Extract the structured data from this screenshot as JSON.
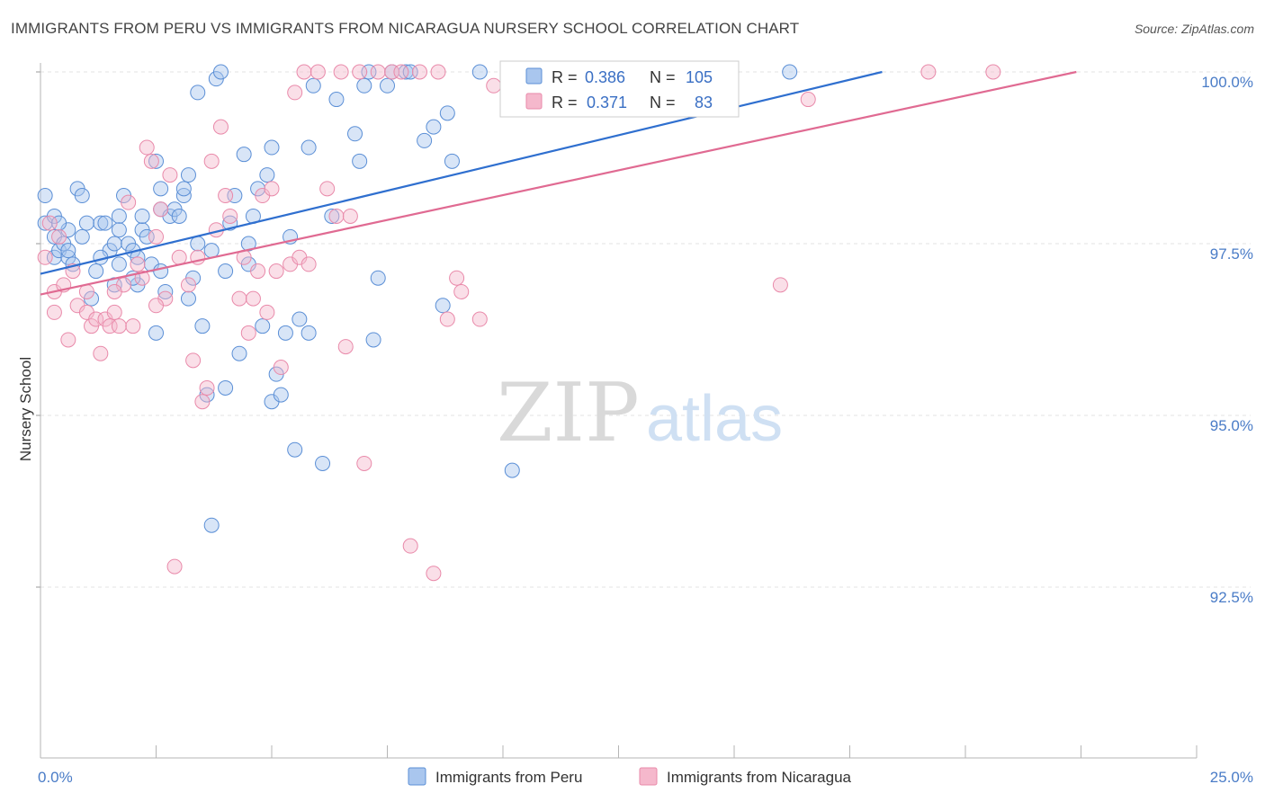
{
  "title": "IMMIGRANTS FROM PERU VS IMMIGRANTS FROM NICARAGUA NURSERY SCHOOL CORRELATION CHART",
  "source": "Source: ZipAtlas.com",
  "watermark": {
    "zip": "ZIP",
    "atlas": "atlas"
  },
  "colors": {
    "peru_fill": "#a9c6ee",
    "peru_stroke": "#5b8fd6",
    "peru_line": "#2f6fcf",
    "nicaragua_fill": "#f5b8cc",
    "nicaragua_stroke": "#e98aaa",
    "nicaragua_line": "#e06a92",
    "grid": "#e3e3e3",
    "axis_text": "#4a7cc7"
  },
  "legend_box": {
    "rows": [
      {
        "r_label": "R =",
        "r_value": "0.386",
        "n_label": "N =",
        "n_value": "105"
      },
      {
        "r_label": "R =",
        "r_value": "0.371",
        "n_label": "N =",
        "n_value": "83"
      }
    ]
  },
  "chart_data": {
    "type": "scatter",
    "title": "IMMIGRANTS FROM PERU VS IMMIGRANTS FROM NICARAGUA NURSERY SCHOOL CORRELATION CHART",
    "xlabel": "",
    "ylabel": "Nursery School",
    "xlim": [
      0,
      25
    ],
    "ylim": [
      90.0,
      100.3
    ],
    "x_tick_labels": [
      "0.0%",
      "25.0%"
    ],
    "y_ticks": [
      92.5,
      95.0,
      97.5,
      100.0
    ],
    "y_tick_labels": [
      "92.5%",
      "95.0%",
      "97.5%",
      "100.0%"
    ],
    "grid": true,
    "legend_position": "bottom",
    "series": [
      {
        "name": "Immigrants from Peru",
        "r": 0.386,
        "n": 105,
        "trend": {
          "x0": 0,
          "y0": 97.06,
          "x1": 18.2,
          "y1": 100.0
        },
        "points": [
          [
            0.1,
            98.2
          ],
          [
            0.1,
            97.8
          ],
          [
            0.3,
            97.9
          ],
          [
            0.3,
            97.6
          ],
          [
            0.3,
            97.3
          ],
          [
            0.4,
            97.4
          ],
          [
            0.5,
            97.5
          ],
          [
            0.6,
            97.3
          ],
          [
            0.6,
            97.4
          ],
          [
            0.7,
            97.2
          ],
          [
            0.8,
            98.3
          ],
          [
            0.9,
            98.2
          ],
          [
            1.0,
            97.8
          ],
          [
            1.1,
            96.7
          ],
          [
            1.2,
            97.1
          ],
          [
            1.3,
            97.8
          ],
          [
            1.4,
            97.8
          ],
          [
            1.5,
            97.4
          ],
          [
            1.6,
            97.5
          ],
          [
            1.6,
            96.9
          ],
          [
            1.7,
            97.2
          ],
          [
            1.7,
            97.9
          ],
          [
            1.8,
            98.2
          ],
          [
            1.9,
            97.5
          ],
          [
            2.0,
            97.4
          ],
          [
            2.1,
            97.3
          ],
          [
            2.1,
            96.9
          ],
          [
            2.2,
            97.7
          ],
          [
            2.3,
            97.6
          ],
          [
            2.4,
            97.2
          ],
          [
            2.5,
            96.2
          ],
          [
            2.5,
            98.7
          ],
          [
            2.6,
            98.3
          ],
          [
            2.6,
            98.0
          ],
          [
            2.7,
            96.8
          ],
          [
            2.8,
            97.9
          ],
          [
            2.9,
            98.0
          ],
          [
            3.0,
            97.9
          ],
          [
            3.1,
            98.2
          ],
          [
            3.1,
            98.3
          ],
          [
            3.2,
            98.5
          ],
          [
            3.3,
            97.0
          ],
          [
            3.4,
            97.5
          ],
          [
            3.4,
            99.7
          ],
          [
            3.5,
            96.3
          ],
          [
            3.6,
            95.3
          ],
          [
            3.7,
            97.4
          ],
          [
            3.8,
            99.9
          ],
          [
            3.9,
            100.0
          ],
          [
            4.0,
            95.4
          ],
          [
            4.1,
            97.8
          ],
          [
            4.2,
            98.2
          ],
          [
            4.3,
            95.9
          ],
          [
            4.4,
            98.8
          ],
          [
            4.5,
            97.5
          ],
          [
            4.6,
            97.9
          ],
          [
            4.7,
            98.3
          ],
          [
            4.8,
            96.3
          ],
          [
            4.9,
            98.5
          ],
          [
            5.0,
            95.2
          ],
          [
            5.0,
            98.9
          ],
          [
            5.1,
            95.6
          ],
          [
            5.2,
            95.3
          ],
          [
            5.3,
            96.2
          ],
          [
            5.4,
            97.6
          ],
          [
            5.5,
            94.5
          ],
          [
            5.6,
            96.4
          ],
          [
            5.8,
            96.2
          ],
          [
            5.8,
            98.9
          ],
          [
            5.9,
            99.8
          ],
          [
            6.1,
            94.3
          ],
          [
            6.3,
            97.9
          ],
          [
            6.4,
            99.6
          ],
          [
            6.8,
            99.1
          ],
          [
            6.9,
            98.7
          ],
          [
            7.0,
            99.8
          ],
          [
            7.1,
            100.0
          ],
          [
            7.2,
            96.1
          ],
          [
            7.3,
            97.0
          ],
          [
            7.5,
            99.8
          ],
          [
            7.6,
            100.0
          ],
          [
            7.9,
            100.0
          ],
          [
            8.0,
            100.0
          ],
          [
            8.3,
            99.0
          ],
          [
            8.5,
            99.2
          ],
          [
            8.7,
            96.6
          ],
          [
            8.8,
            99.4
          ],
          [
            8.9,
            98.7
          ],
          [
            9.5,
            100.0
          ],
          [
            10.2,
            94.2
          ],
          [
            10.5,
            100.0
          ],
          [
            11.0,
            100.0
          ],
          [
            16.2,
            100.0
          ],
          [
            3.7,
            93.4
          ],
          [
            0.6,
            97.7
          ],
          [
            1.3,
            97.3
          ],
          [
            2.0,
            97.0
          ],
          [
            2.6,
            97.1
          ],
          [
            3.2,
            96.7
          ],
          [
            4.0,
            97.1
          ],
          [
            0.4,
            97.8
          ],
          [
            0.9,
            97.6
          ],
          [
            1.7,
            97.7
          ],
          [
            2.2,
            97.9
          ],
          [
            4.5,
            97.2
          ]
        ]
      },
      {
        "name": "Immigrants from Nicaragua",
        "r": 0.371,
        "n": 83,
        "trend": {
          "x0": 0,
          "y0": 96.76,
          "x1": 22.4,
          "y1": 100.0
        },
        "points": [
          [
            0.1,
            97.3
          ],
          [
            0.2,
            97.8
          ],
          [
            0.3,
            96.8
          ],
          [
            0.3,
            96.5
          ],
          [
            0.5,
            96.9
          ],
          [
            0.6,
            96.1
          ],
          [
            0.7,
            97.1
          ],
          [
            0.8,
            96.6
          ],
          [
            1.0,
            96.5
          ],
          [
            1.1,
            96.3
          ],
          [
            1.2,
            96.4
          ],
          [
            1.3,
            95.9
          ],
          [
            1.4,
            96.4
          ],
          [
            1.5,
            96.3
          ],
          [
            1.6,
            96.5
          ],
          [
            1.7,
            96.3
          ],
          [
            1.8,
            96.9
          ],
          [
            1.9,
            98.1
          ],
          [
            2.0,
            96.3
          ],
          [
            2.1,
            97.2
          ],
          [
            2.2,
            97.0
          ],
          [
            2.3,
            98.9
          ],
          [
            2.4,
            98.7
          ],
          [
            2.5,
            97.6
          ],
          [
            2.6,
            98.0
          ],
          [
            2.7,
            96.7
          ],
          [
            2.8,
            98.5
          ],
          [
            2.9,
            92.8
          ],
          [
            3.0,
            97.3
          ],
          [
            3.2,
            96.9
          ],
          [
            3.3,
            95.8
          ],
          [
            3.4,
            97.3
          ],
          [
            3.5,
            95.2
          ],
          [
            3.6,
            95.4
          ],
          [
            3.7,
            98.7
          ],
          [
            3.8,
            97.7
          ],
          [
            3.9,
            99.2
          ],
          [
            4.0,
            98.2
          ],
          [
            4.1,
            97.9
          ],
          [
            4.3,
            96.7
          ],
          [
            4.4,
            97.3
          ],
          [
            4.5,
            96.2
          ],
          [
            4.6,
            96.7
          ],
          [
            4.7,
            97.1
          ],
          [
            4.8,
            98.2
          ],
          [
            4.9,
            96.5
          ],
          [
            5.0,
            98.3
          ],
          [
            5.1,
            97.1
          ],
          [
            5.2,
            95.7
          ],
          [
            5.4,
            97.2
          ],
          [
            5.5,
            99.7
          ],
          [
            5.6,
            97.3
          ],
          [
            5.7,
            100.0
          ],
          [
            5.8,
            97.2
          ],
          [
            6.0,
            100.0
          ],
          [
            6.2,
            98.3
          ],
          [
            6.4,
            97.9
          ],
          [
            6.5,
            100.0
          ],
          [
            6.6,
            96.0
          ],
          [
            6.7,
            97.9
          ],
          [
            6.9,
            100.0
          ],
          [
            7.0,
            94.3
          ],
          [
            7.3,
            100.0
          ],
          [
            7.6,
            100.0
          ],
          [
            7.8,
            100.0
          ],
          [
            8.0,
            93.1
          ],
          [
            8.2,
            100.0
          ],
          [
            8.5,
            92.7
          ],
          [
            8.6,
            100.0
          ],
          [
            8.8,
            96.4
          ],
          [
            9.0,
            97.0
          ],
          [
            9.1,
            96.8
          ],
          [
            9.5,
            96.4
          ],
          [
            9.8,
            99.8
          ],
          [
            12.2,
            100.0
          ],
          [
            16.0,
            96.9
          ],
          [
            16.6,
            99.6
          ],
          [
            19.2,
            100.0
          ],
          [
            20.6,
            100.0
          ],
          [
            0.4,
            97.6
          ],
          [
            1.0,
            96.8
          ],
          [
            1.6,
            96.8
          ],
          [
            2.5,
            96.6
          ]
        ]
      }
    ]
  },
  "legend": {
    "items": [
      {
        "label": "Immigrants from Peru"
      },
      {
        "label": "Immigrants from Nicaragua"
      }
    ]
  }
}
